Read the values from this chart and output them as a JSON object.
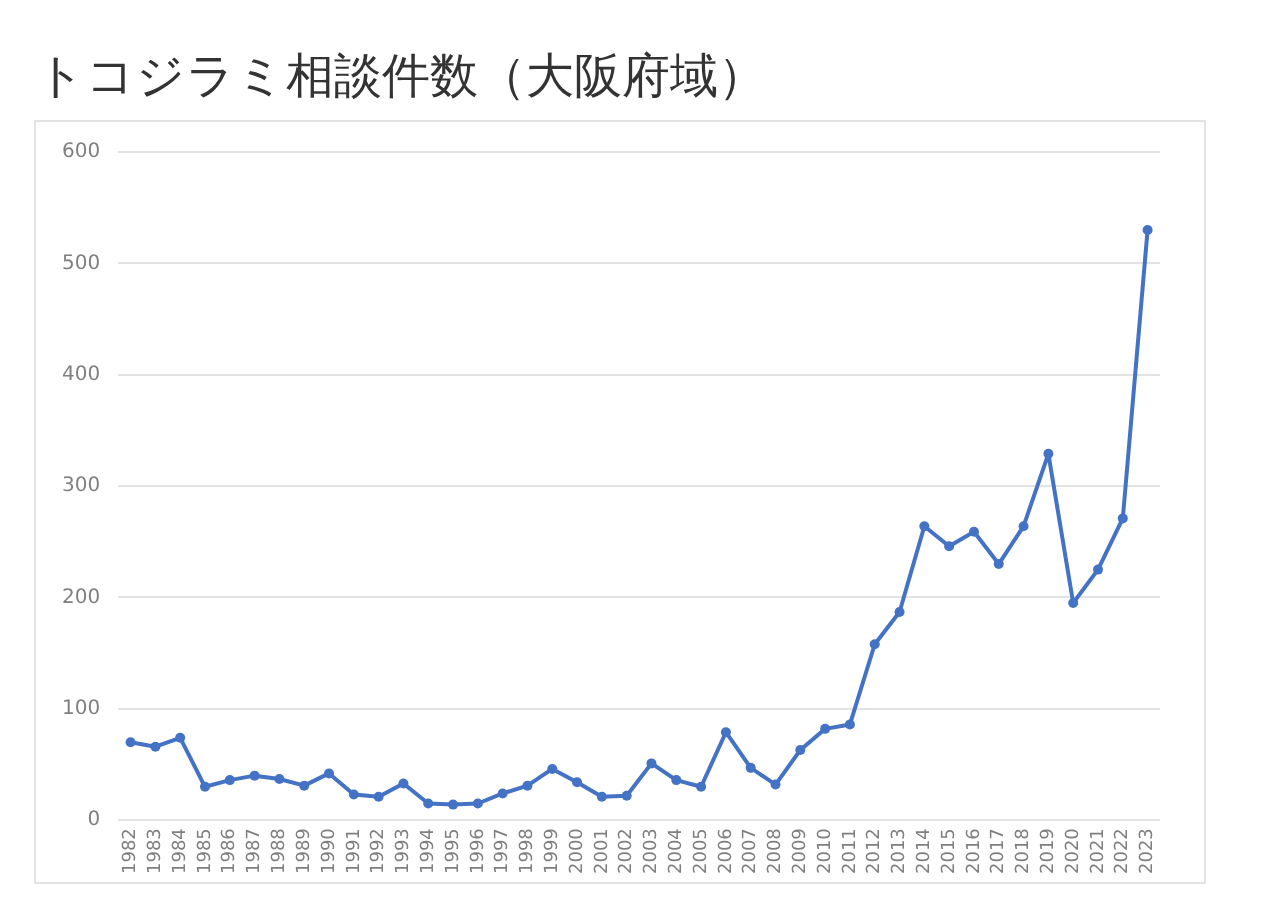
{
  "chart_data": {
    "type": "line",
    "title": "トコジラミ相談件数（大阪府域）",
    "categories": [
      "1982",
      "1983",
      "1984",
      "1985",
      "1986",
      "1987",
      "1988",
      "1989",
      "1990",
      "1991",
      "1992",
      "1993",
      "1994",
      "1995",
      "1996",
      "1997",
      "1998",
      "1999",
      "2000",
      "2001",
      "2002",
      "2003",
      "2004",
      "2005",
      "2006",
      "2007",
      "2008",
      "2009",
      "2010",
      "2011",
      "2012",
      "2013",
      "2014",
      "2015",
      "2016",
      "2017",
      "2018",
      "2019",
      "2020",
      "2021",
      "2022",
      "2023"
    ],
    "values": [
      70,
      66,
      74,
      30,
      36,
      40,
      37,
      31,
      42,
      23,
      21,
      33,
      15,
      14,
      15,
      24,
      31,
      46,
      34,
      21,
      22,
      51,
      36,
      30,
      79,
      47,
      32,
      63,
      82,
      86,
      158,
      187,
      264,
      246,
      259,
      230,
      264,
      329,
      195,
      225,
      271,
      530
    ],
    "color": "#4472c4",
    "ylim": [
      0,
      600
    ],
    "yticks": [
      0,
      100,
      200,
      300,
      400,
      500,
      600
    ],
    "grid": "y",
    "marker": "circle",
    "line_style": "solid"
  }
}
